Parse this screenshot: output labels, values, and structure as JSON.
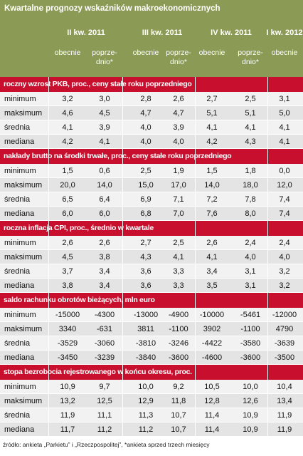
{
  "header": {
    "title": "Kwartalne prognozy wskaźników makroekonomicznych",
    "groups": [
      {
        "label": "II kw. 2011",
        "cols": [
          0,
          1
        ]
      },
      {
        "label": "III kw. 2011",
        "cols": [
          2,
          3
        ]
      },
      {
        "label": "IV kw. 2011",
        "cols": [
          4,
          5
        ]
      },
      {
        "label": "I kw. 2012",
        "cols": [
          6
        ]
      }
    ],
    "subheaders": [
      [
        "obecnie"
      ],
      [
        "poprze-",
        "dnio*"
      ],
      [
        "obecnie"
      ],
      [
        "poprze-",
        "dnio*"
      ],
      [
        "obecnie"
      ],
      [
        "poprze-",
        "dnio*"
      ],
      [
        "obecnie"
      ]
    ]
  },
  "sections": [
    {
      "title": "roczny wzrost PKB, proc., ceny stałe roku poprzedniego",
      "rows": [
        {
          "label": "minimum",
          "values": [
            "3,2",
            "3,0",
            "2,8",
            "2,6",
            "2,7",
            "2,5",
            "3,1"
          ]
        },
        {
          "label": "maksimum",
          "values": [
            "4,6",
            "4,5",
            "4,7",
            "4,7",
            "5,1",
            "5,1",
            "5,0"
          ]
        },
        {
          "label": "średnia",
          "values": [
            "4,1",
            "3,9",
            "4,0",
            "3,9",
            "4,1",
            "4,1",
            "4,1"
          ]
        },
        {
          "label": "mediana",
          "values": [
            "4,2",
            "4,1",
            "4,0",
            "4,0",
            "4,2",
            "4,3",
            "4,1"
          ]
        }
      ]
    },
    {
      "title": "nakłady brutto na środki trwałe, proc., ceny stałe roku poprzedniego",
      "rows": [
        {
          "label": "minimum",
          "values": [
            "1,5",
            "0,6",
            "2,5",
            "1,9",
            "1,5",
            "1,8",
            "0,0"
          ]
        },
        {
          "label": "maksimum",
          "values": [
            "20,0",
            "14,0",
            "15,0",
            "17,0",
            "14,0",
            "18,0",
            "12,0"
          ]
        },
        {
          "label": "średnia",
          "values": [
            "6,5",
            "6,4",
            "6,9",
            "7,1",
            "7,2",
            "7,8",
            "7,4"
          ]
        },
        {
          "label": "mediana",
          "values": [
            "6,0",
            "6,0",
            "6,8",
            "7,0",
            "7,6",
            "8,0",
            "7,4"
          ]
        }
      ]
    },
    {
      "title": "roczna inflacja CPI, proc., średnio w kwartale",
      "rows": [
        {
          "label": "minimum",
          "values": [
            "2,6",
            "2,6",
            "2,7",
            "2,5",
            "2,6",
            "2,4",
            "2,4"
          ]
        },
        {
          "label": "maksimum",
          "values": [
            "4,5",
            "3,8",
            "4,3",
            "4,1",
            "4,1",
            "4,0",
            "4,0"
          ]
        },
        {
          "label": "średnia",
          "values": [
            "3,7",
            "3,4",
            "3,6",
            "3,3",
            "3,4",
            "3,1",
            "3,2"
          ]
        },
        {
          "label": "mediana",
          "values": [
            "3,8",
            "3,4",
            "3,6",
            "3,3",
            "3,5",
            "3,1",
            "3,2"
          ]
        }
      ]
    },
    {
      "title": "saldo rachunku obrotów bieżących, mln euro",
      "rows": [
        {
          "label": "minimum",
          "values": [
            "-15000",
            "-4300",
            "-13000",
            "-4900",
            "-10000",
            "-5461",
            "-12000"
          ]
        },
        {
          "label": "maksimum",
          "values": [
            "3340",
            "-631",
            "3811",
            "-1100",
            "3902",
            "-1100",
            "4790"
          ]
        },
        {
          "label": "średnia",
          "values": [
            "-3529",
            "-3060",
            "-3810",
            "-3246",
            "-4422",
            "-3580",
            "-3639"
          ]
        },
        {
          "label": "mediana",
          "values": [
            "-3450",
            "-3239",
            "-3840",
            "-3600",
            "-4600",
            "-3600",
            "-3500"
          ]
        }
      ]
    },
    {
      "title": "stopa bezrobocia rejestrowanego w końcu okresu, proc.",
      "rows": [
        {
          "label": "minimum",
          "values": [
            "10,9",
            "9,7",
            "10,0",
            "9,2",
            "10,5",
            "10,0",
            "10,4"
          ]
        },
        {
          "label": "maksimum",
          "values": [
            "13,2",
            "12,5",
            "12,9",
            "11,8",
            "12,8",
            "12,6",
            "13,4"
          ]
        },
        {
          "label": "średnia",
          "values": [
            "11,9",
            "11,1",
            "11,3",
            "10,7",
            "11,4",
            "10,9",
            "11,9"
          ]
        },
        {
          "label": "mediana",
          "values": [
            "11,7",
            "11,2",
            "11,2",
            "10,7",
            "11,4",
            "10,9",
            "11,9"
          ]
        }
      ]
    }
  ],
  "footer": "źródło: ankieta „Parkietu” i „Rzeczpospolitej”, *ankieta sprzed trzech miesięcy"
}
